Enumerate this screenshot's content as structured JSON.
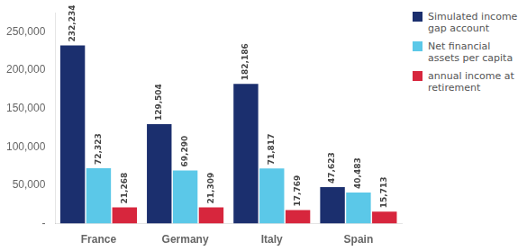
{
  "chart_data": {
    "type": "bar",
    "categories": [
      "France",
      "Germany",
      "Italy",
      "Spain"
    ],
    "series": [
      {
        "name": "Simulated income\ngap account",
        "color": "#1b2f6e",
        "values": [
          232234,
          129504,
          182186,
          47623
        ],
        "value_labels": [
          "232,234",
          "129,504",
          "182,186",
          "47,623"
        ]
      },
      {
        "name": "Net financial\nassets per capita",
        "color": "#5bc8e8",
        "values": [
          72323,
          69290,
          71817,
          40483
        ],
        "value_labels": [
          "72,323",
          "69,290",
          "71,817",
          "40,483"
        ]
      },
      {
        "name": "annual income at\nretirement",
        "color": "#d7263d",
        "values": [
          21268,
          21309,
          17769,
          15713
        ],
        "value_labels": [
          "21,268",
          "21,309",
          "17,769",
          "15,713"
        ]
      }
    ],
    "ylim": [
      0,
      275000
    ],
    "yticks": [
      {
        "value": 0,
        "label": "-"
      },
      {
        "value": 50000,
        "label": "50,000"
      },
      {
        "value": 100000,
        "label": "100,000"
      },
      {
        "value": 150000,
        "label": "150,000"
      },
      {
        "value": 200000,
        "label": "200,000"
      },
      {
        "value": 250000,
        "label": "250,000"
      }
    ],
    "grid": false,
    "legend": "upper right",
    "data_labels": true
  }
}
